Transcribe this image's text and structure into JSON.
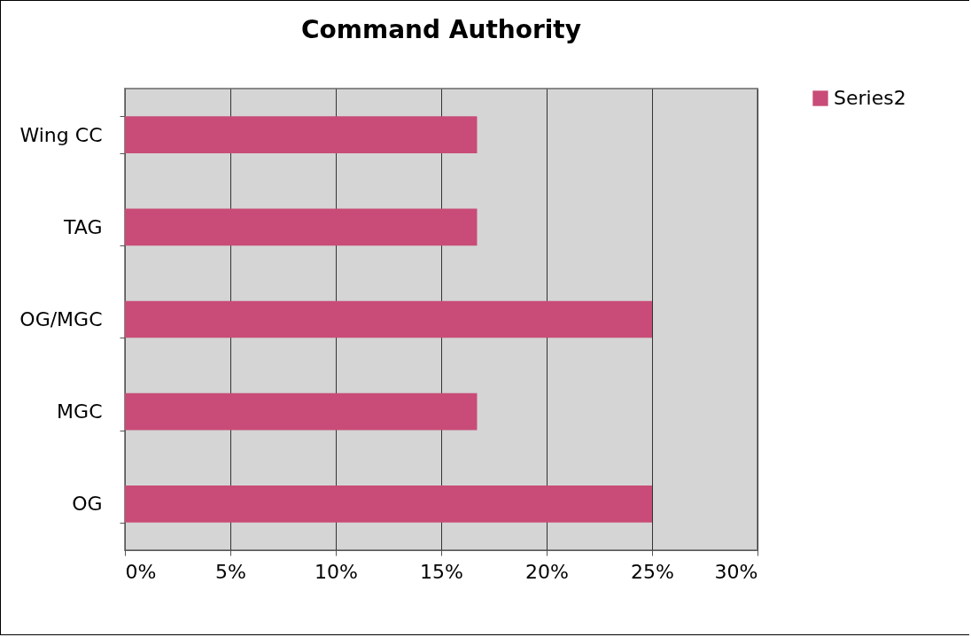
{
  "chart_data": {
    "type": "bar",
    "orientation": "horizontal",
    "title": "Command Authority",
    "categories": [
      "Wing CC",
      "TAG",
      "OG/MGC",
      "MGC",
      "OG"
    ],
    "series": [
      {
        "name": "Series2",
        "color": "#c84c77",
        "values": [
          16.7,
          16.7,
          25,
          16.7,
          25
        ]
      }
    ],
    "xlim": [
      0,
      30
    ],
    "xticks": [
      {
        "value": 0,
        "label": "0%"
      },
      {
        "value": 5,
        "label": "5%"
      },
      {
        "value": 10,
        "label": "10%"
      },
      {
        "value": 15,
        "label": "15%"
      },
      {
        "value": 20,
        "label": "20%"
      },
      {
        "value": 25,
        "label": "25%"
      },
      {
        "value": 30,
        "label": "30%"
      }
    ],
    "grid": "x",
    "legend": "right"
  }
}
